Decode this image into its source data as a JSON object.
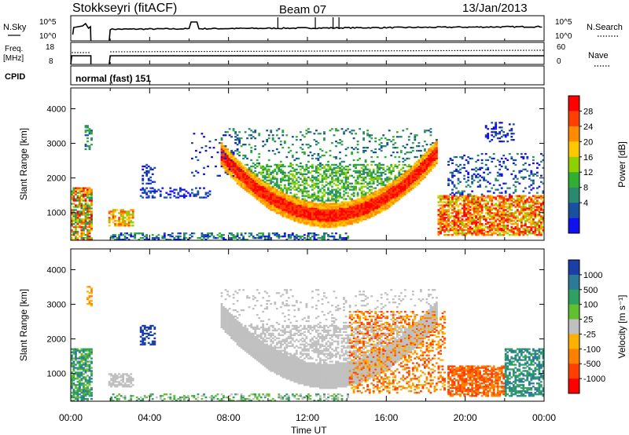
{
  "header": {
    "station": "Stokkseyri (fitACF)",
    "beam": "Beam 07",
    "date": "13/Jan/2013"
  },
  "noise_panel": {
    "left_label": "N.Sky",
    "left_ticks": [
      "10^5",
      "10^0"
    ],
    "right_ticks": [
      "10^5",
      "10^0"
    ],
    "right_label": "N.Search"
  },
  "freq_panel": {
    "left_label_line1": "Freq.",
    "left_label_line2": "[MHz]",
    "left_ticks": [
      "18",
      "8"
    ],
    "right_ticks": [
      "60",
      "0"
    ],
    "right_label": "Nave"
  },
  "cpid": {
    "label": "CPID",
    "value": "normal (fast) 151"
  },
  "chart_data": [
    {
      "type": "heatmap",
      "title": "",
      "ylabel": "Slant Range [km]",
      "xlabel": "",
      "ylim": [
        200,
        4600
      ],
      "y_ticks": [
        "1000",
        "2000",
        "3000",
        "4000"
      ],
      "x_ticks": [
        "00:00",
        "04:00",
        "08:00",
        "12:00",
        "16:00",
        "20:00",
        "00:00"
      ],
      "colorbar": {
        "label": "Power [dB]",
        "ticks": [
          "28",
          "24",
          "20",
          "16",
          "12",
          "8",
          "4"
        ],
        "colors": [
          "#ff0000",
          "#ff4000",
          "#ff8c00",
          "#ffc800",
          "#90d000",
          "#30b030",
          "#2a8a70",
          "#1a50a0",
          "#1010f0"
        ]
      }
    },
    {
      "type": "heatmap",
      "title": "",
      "ylabel": "Slant Range [km]",
      "xlabel": "Time UT",
      "ylim": [
        200,
        4600
      ],
      "y_ticks": [
        "1000",
        "2000",
        "3000",
        "4000"
      ],
      "x_ticks": [
        "00:00",
        "04:00",
        "08:00",
        "12:00",
        "16:00",
        "20:00",
        "00:00"
      ],
      "colorbar": {
        "label": "Velocity [m s⁻¹]",
        "ticks": [
          "1000",
          "500",
          "100",
          "25",
          "-25",
          "-100",
          "-500",
          "-1000"
        ],
        "colors": [
          "#1a3fa8",
          "#2a7a98",
          "#2ea060",
          "#60c030",
          "#c0c0c0",
          "#ffb000",
          "#ff8000",
          "#ff4000",
          "#ff0000"
        ]
      }
    }
  ]
}
